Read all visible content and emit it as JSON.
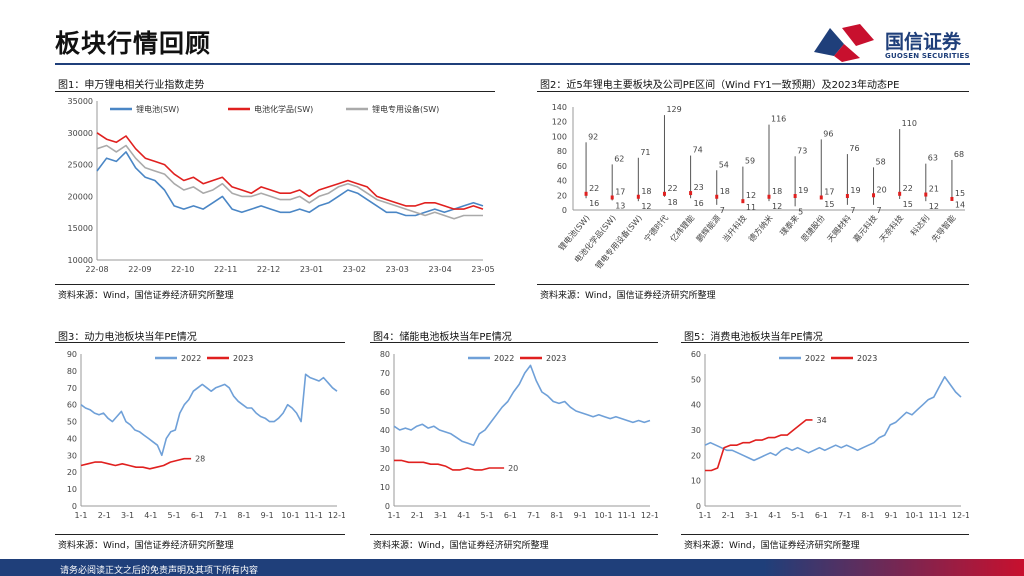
{
  "header": {
    "title": "板块行情回顾",
    "logo_text": "国信证券",
    "logo_sub": "GUOSEN SECURITIES"
  },
  "footer": {
    "text": "请务必阅读正文之后的免责声明及其项下所有内容"
  },
  "figures": {
    "fig1": {
      "title": "图1：申万锂电相关行业指数走势",
      "source": "资料来源：Wind，国信证券经济研究所整理"
    },
    "fig2": {
      "title": "图2：近5年锂电主要板块及公司PE区间（Wind FY1一致预期）及2023年动态PE",
      "source": "资料来源：Wind，国信证券经济研究所整理"
    },
    "fig3": {
      "title": "图3：动力电池板块当年PE情况",
      "source": "资料来源：Wind，国信证券经济研究所整理"
    },
    "fig4": {
      "title": "图4：储能电池板块当年PE情况",
      "source": "资料来源：Wind，国信证券经济研究所整理"
    },
    "fig5": {
      "title": "图5：消费电池板块当年PE情况",
      "source": "资料来源：Wind，国信证券经济研究所整理"
    }
  },
  "chart_data": [
    {
      "id": "fig1",
      "type": "line",
      "x_ticks": [
        "22-08",
        "22-09",
        "22-10",
        "22-11",
        "22-12",
        "23-01",
        "23-02",
        "23-03",
        "23-04",
        "23-05"
      ],
      "ylim": [
        10000,
        35000
      ],
      "y_ticks": [
        10000,
        15000,
        20000,
        25000,
        30000,
        35000
      ],
      "series": [
        {
          "name": "锂电池(SW)",
          "color": "#4a86c5",
          "values": [
            24000,
            26000,
            25500,
            27000,
            24500,
            23000,
            22500,
            21000,
            18500,
            18000,
            18500,
            18000,
            19000,
            20000,
            18000,
            17500,
            18000,
            18500,
            18000,
            17500,
            17500,
            18000,
            17500,
            18500,
            19000,
            20000,
            21000,
            20500,
            19500,
            18500,
            17500,
            17500,
            17000,
            17000,
            17500,
            18000,
            17500,
            18000,
            18500,
            19000,
            18500
          ]
        },
        {
          "name": "电池化学品(SW)",
          "color": "#e0201f",
          "values": [
            30000,
            29000,
            28500,
            29500,
            27500,
            26000,
            25500,
            25000,
            23500,
            22500,
            23000,
            22000,
            22500,
            23000,
            21500,
            21000,
            20500,
            21500,
            21000,
            20500,
            20500,
            21000,
            20000,
            21000,
            21500,
            22000,
            22500,
            22000,
            21500,
            20000,
            19500,
            19000,
            18500,
            18500,
            19000,
            19000,
            18500,
            18000,
            18000,
            18500,
            18000
          ]
        },
        {
          "name": "锂电专用设备(SW)",
          "color": "#aaaaaa",
          "values": [
            27500,
            28000,
            27000,
            28000,
            26000,
            24500,
            24000,
            23500,
            22000,
            21000,
            21500,
            20500,
            21000,
            22000,
            20500,
            20000,
            20000,
            20500,
            20000,
            19500,
            19500,
            20000,
            19000,
            20000,
            20500,
            21500,
            22000,
            21500,
            20500,
            19500,
            19000,
            18500,
            18000,
            17500,
            17000,
            17500,
            17000,
            16500,
            17000,
            17000,
            17000
          ]
        }
      ]
    },
    {
      "id": "fig2",
      "type": "bar",
      "ylim": [
        0,
        140
      ],
      "y_ticks": [
        0,
        20,
        40,
        60,
        80,
        100,
        120,
        140
      ],
      "categories": [
        "锂电池(SW)",
        "电池化学品(SW)",
        "锂电专用设备(SW)",
        "宁德时代",
        "亿纬锂能",
        "鹏辉能源",
        "当升科技",
        "德方纳米",
        "璞泰来",
        "恩捷股份",
        "天赐材料",
        "嘉元科技",
        "天奈科技",
        "科达利",
        "先导智能"
      ],
      "max": [
        92,
        62,
        71,
        129,
        74,
        54,
        59,
        116,
        73,
        96,
        76,
        58,
        110,
        63,
        68
      ],
      "min": [
        16,
        13,
        12,
        18,
        16,
        7,
        11,
        12,
        5,
        15,
        7,
        7,
        15,
        12,
        14
      ],
      "current": [
        22,
        17,
        18,
        22,
        23,
        18,
        12,
        18,
        19,
        17,
        19,
        20,
        22,
        21,
        15
      ]
    },
    {
      "id": "fig3",
      "type": "line",
      "x_ticks": [
        "1-1",
        "2-1",
        "3-1",
        "4-1",
        "5-1",
        "6-1",
        "7-1",
        "8-1",
        "9-1",
        "10-1",
        "11-1",
        "12-1"
      ],
      "ylim": [
        0,
        90
      ],
      "y_ticks": [
        0,
        10,
        20,
        30,
        40,
        50,
        60,
        70,
        80,
        90
      ],
      "series": [
        {
          "name": "2022",
          "color": "#6fa0d8",
          "values": [
            60,
            58,
            57,
            55,
            54,
            55,
            52,
            50,
            53,
            56,
            50,
            48,
            45,
            44,
            42,
            40,
            38,
            36,
            30,
            40,
            44,
            45,
            55,
            60,
            63,
            68,
            70,
            72,
            70,
            68,
            70,
            71,
            72,
            70,
            65,
            62,
            60,
            58,
            58,
            55,
            53,
            52,
            50,
            50,
            52,
            55,
            60,
            58,
            55,
            50,
            78,
            76,
            75,
            74,
            76,
            73,
            70,
            68
          ]
        },
        {
          "name": "2023",
          "color": "#e0201f",
          "end_label": "28",
          "values": [
            24,
            25,
            26,
            26,
            25,
            24,
            25,
            24,
            23,
            23,
            22,
            23,
            24,
            26,
            27,
            28,
            28
          ]
        }
      ]
    },
    {
      "id": "fig4",
      "type": "line",
      "x_ticks": [
        "1-1",
        "2-1",
        "3-1",
        "4-1",
        "5-1",
        "6-1",
        "7-1",
        "8-1",
        "9-1",
        "10-1",
        "11-1",
        "12-1"
      ],
      "ylim": [
        0,
        80
      ],
      "y_ticks": [
        0,
        10,
        20,
        30,
        40,
        50,
        60,
        70,
        80
      ],
      "series": [
        {
          "name": "2022",
          "color": "#6fa0d8",
          "values": [
            42,
            40,
            41,
            40,
            42,
            43,
            41,
            42,
            40,
            39,
            38,
            36,
            34,
            33,
            32,
            38,
            40,
            44,
            48,
            52,
            55,
            60,
            64,
            70,
            74,
            66,
            60,
            58,
            55,
            54,
            55,
            52,
            50,
            49,
            48,
            47,
            48,
            47,
            46,
            47,
            46,
            45,
            44,
            45,
            44,
            45
          ]
        },
        {
          "name": "2023",
          "color": "#e0201f",
          "end_label": "20",
          "values": [
            24,
            24,
            23,
            23,
            23,
            22,
            22,
            21,
            19,
            19,
            20,
            19,
            19,
            20,
            20,
            20
          ]
        }
      ]
    },
    {
      "id": "fig5",
      "type": "line",
      "x_ticks": [
        "1-1",
        "2-1",
        "3-1",
        "4-1",
        "5-1",
        "6-1",
        "7-1",
        "8-1",
        "9-1",
        "10-1",
        "11-1",
        "12-1"
      ],
      "ylim": [
        0,
        60
      ],
      "y_ticks": [
        0,
        10,
        20,
        30,
        40,
        50,
        60
      ],
      "series": [
        {
          "name": "2022",
          "color": "#6fa0d8",
          "values": [
            24,
            25,
            24,
            23,
            22,
            22,
            21,
            20,
            19,
            18,
            19,
            20,
            21,
            20,
            22,
            23,
            22,
            23,
            22,
            21,
            22,
            23,
            22,
            23,
            24,
            23,
            24,
            23,
            22,
            23,
            24,
            25,
            27,
            28,
            32,
            33,
            35,
            37,
            36,
            38,
            40,
            42,
            43,
            47,
            51,
            48,
            45,
            43
          ]
        },
        {
          "name": "2023",
          "color": "#e0201f",
          "end_label": "34",
          "values": [
            14,
            14,
            15,
            23,
            24,
            24,
            25,
            25,
            26,
            26,
            27,
            27,
            28,
            28,
            30,
            32,
            34,
            34
          ]
        }
      ]
    }
  ]
}
